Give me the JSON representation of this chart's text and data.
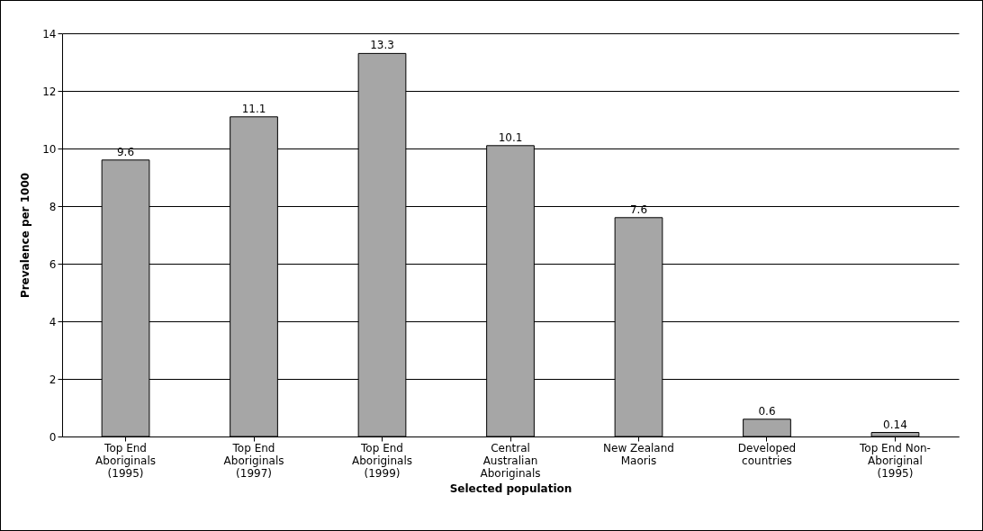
{
  "chart_data": {
    "type": "bar",
    "xlabel": "Selected population",
    "ylabel": "Prevalence per 1000",
    "categories": [
      "Top End Aboriginals (1995)",
      "Top End Aboriginals (1997)",
      "Top End Aboriginals (1999)",
      "Central Australian Aboriginals",
      "New Zealand Maoris",
      "Developed countries",
      "Top End Non-Aboriginal (1995)"
    ],
    "values": [
      9.6,
      11.1,
      13.3,
      10.1,
      7.6,
      0.6,
      0.14
    ],
    "color": "#a6a6a6",
    "ylim": [
      0,
      14
    ],
    "yticks": [
      0,
      2,
      4,
      6,
      8,
      10,
      12,
      14
    ],
    "grid": "y",
    "data_labels": true
  }
}
